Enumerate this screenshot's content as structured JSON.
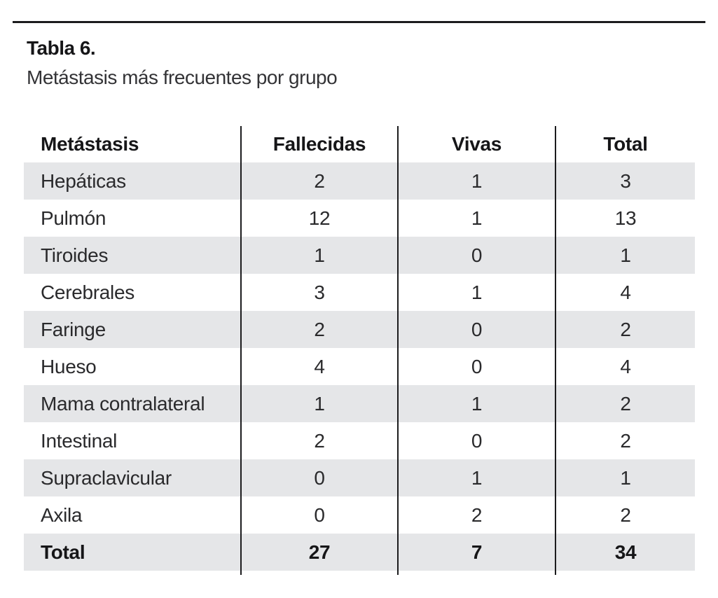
{
  "page": {
    "title": "Tabla 6.",
    "subtitle": "Metástasis más frecuentes por grupo"
  },
  "colors": {
    "stripe": "#e5e6e8",
    "text": "#2a2a2c",
    "rule": "#1c1c1e",
    "background": "#ffffff"
  },
  "table": {
    "columns": [
      "Metástasis",
      "Fallecidas",
      "Vivas",
      "Total"
    ],
    "rows": [
      [
        "Hepáticas",
        "2",
        "1",
        "3"
      ],
      [
        "Pulmón",
        "12",
        "1",
        "13"
      ],
      [
        "Tiroides",
        "1",
        "0",
        "1"
      ],
      [
        "Cerebrales",
        "3",
        "1",
        "4"
      ],
      [
        "Faringe",
        "2",
        "0",
        "2"
      ],
      [
        "Hueso",
        "4",
        "0",
        "4"
      ],
      [
        "Mama contralateral",
        "1",
        "1",
        "2"
      ],
      [
        "Intestinal",
        "2",
        "0",
        "2"
      ],
      [
        "Supraclavicular",
        "0",
        "1",
        "1"
      ],
      [
        "Axila",
        "0",
        "2",
        "2"
      ]
    ],
    "footer": [
      "Total",
      "27",
      "7",
      "34"
    ]
  }
}
